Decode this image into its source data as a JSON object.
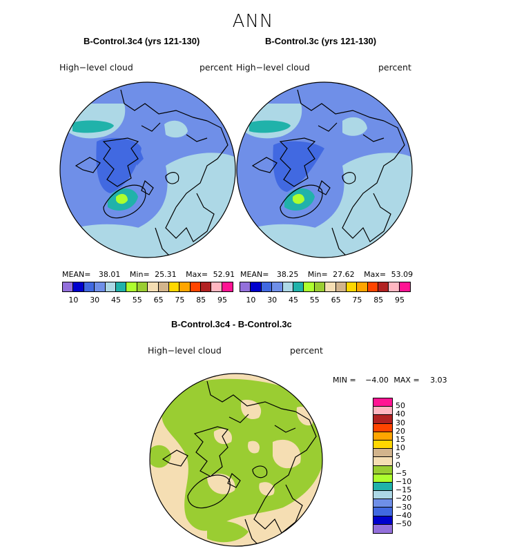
{
  "figure_title": "ANN",
  "panels": [
    {
      "case_title": "B-Control.3c4 (yrs 121-130)",
      "variable": "High−level cloud",
      "units": "percent",
      "mean_label": "MEAN=",
      "mean": "38.01",
      "min_label": "Min=",
      "min": "25.31",
      "max_label": "Max=",
      "max": "52.91"
    },
    {
      "case_title": "B-Control.3c (yrs 121-130)",
      "variable": "High−level cloud",
      "units": "percent",
      "mean_label": "MEAN=",
      "mean": "38.25",
      "min_label": "Min=",
      "min": "27.62",
      "max_label": "Max=",
      "max": "53.09"
    }
  ],
  "abs_colorbar": {
    "colors": [
      "#9370db",
      "#0000cd",
      "#4169e1",
      "#6f8fe8",
      "#add8e6",
      "#20b2aa",
      "#adff2f",
      "#9acd32",
      "#f5deb3",
      "#d2b48c",
      "#ffd700",
      "#ffa500",
      "#ff4500",
      "#b22222",
      "#ffb6c1",
      "#ff1493"
    ],
    "tick_labels": [
      "10",
      "30",
      "45",
      "55",
      "65",
      "75",
      "85",
      "95"
    ]
  },
  "difference": {
    "title": "B-Control.3c4 - B-Control.3c",
    "variable": "High−level cloud",
    "units": "percent",
    "min_label": "MIN =",
    "min": "−4.00",
    "max_label": "MAX =",
    "max": "3.03"
  },
  "diff_colorbar": {
    "colors": [
      "#ff1493",
      "#ffb6c1",
      "#b22222",
      "#ff4500",
      "#ffa500",
      "#ffd700",
      "#d2b48c",
      "#f5deb3",
      "#9acd32",
      "#adff2f",
      "#20b2aa",
      "#add8e6",
      "#6f8fe8",
      "#4169e1",
      "#0000cd",
      "#9370db"
    ],
    "tick_labels": [
      "50",
      "40",
      "30",
      "20",
      "15",
      "10",
      "5",
      "0",
      "−5",
      "−10",
      "−15",
      "−20",
      "−30",
      "−40",
      "−50"
    ]
  }
}
